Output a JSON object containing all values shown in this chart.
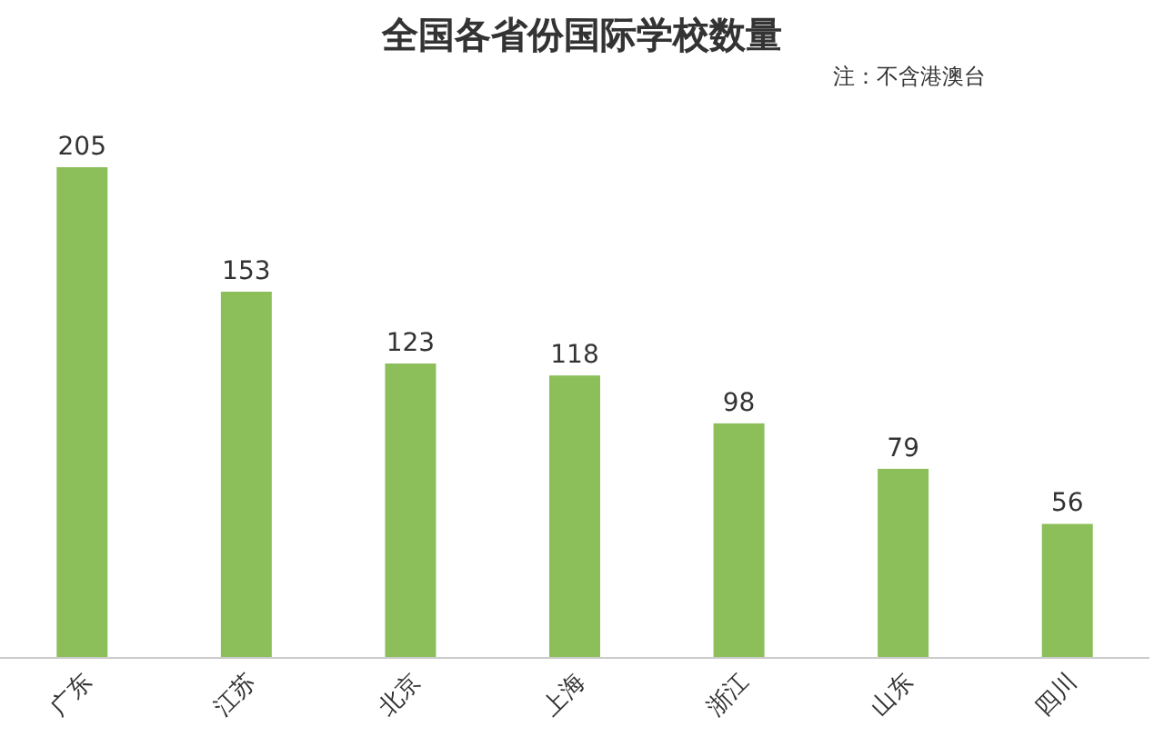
{
  "chart_data": {
    "type": "bar",
    "title": "全国各省份国际学校数量",
    "annotations": [
      "注：不含港澳台"
    ],
    "categories": [
      "广东",
      "江苏",
      "北京",
      "上海",
      "浙江",
      "山东",
      "四川"
    ],
    "values": [
      205,
      153,
      123,
      118,
      98,
      79,
      56
    ],
    "color": "#8cbf5a",
    "data_labels": true
  }
}
